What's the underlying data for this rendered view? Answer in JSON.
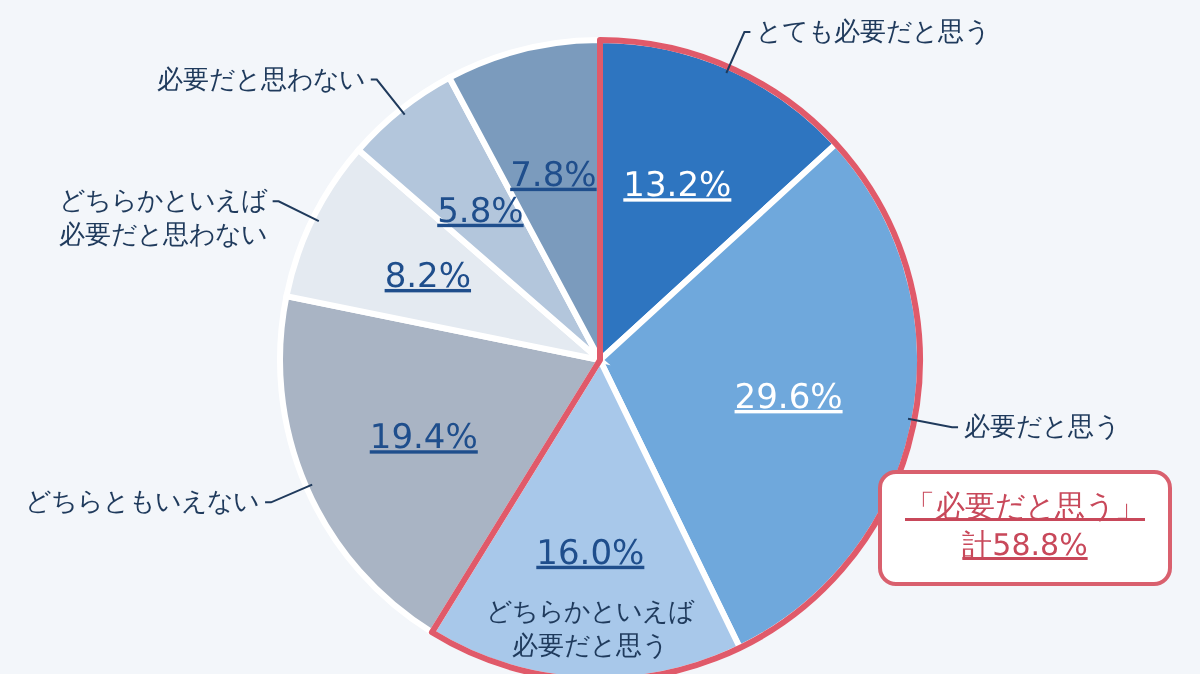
{
  "chart_data": {
    "type": "pie",
    "categories": [
      "とても必要だと思う",
      "必要だと思う",
      "どちらかといえば必要だと思う",
      "どちらともいえない",
      "どちらかといえば必要だと思わない",
      "必要だと思わない",
      null
    ],
    "values": [
      13.2,
      29.6,
      16.0,
      19.4,
      8.2,
      5.8,
      7.8
    ],
    "value_labels": [
      "13.2%",
      "29.6%",
      "16.0%",
      "19.4%",
      "8.2%",
      "5.8%",
      "7.8%"
    ],
    "colors": [
      "#2e75c0",
      "#6fa8dc",
      "#a8c8ea",
      "#a9b4c4",
      "#e4eaf1",
      "#b3c6dc",
      "#7b9bbd"
    ],
    "annotations": [
      "「必要だと思う」計58.8%"
    ]
  }
}
